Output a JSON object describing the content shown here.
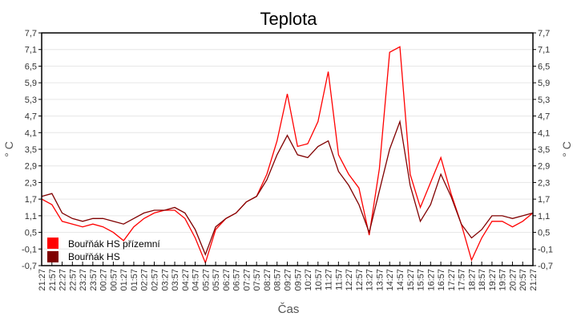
{
  "chart_data": {
    "type": "line",
    "title": "Teplota",
    "xlabel": "Čas",
    "ylabel": "° C",
    "ylim": [
      -0.7,
      7.7
    ],
    "yticks": [
      "-0,7",
      "-0,1",
      "0,5",
      "1,1",
      "1,7",
      "2,3",
      "2,9",
      "3,5",
      "4,1",
      "4,7",
      "5,3",
      "5,9",
      "6,5",
      "7,1",
      "7,7"
    ],
    "grid": true,
    "legend_placement": "bottom-left",
    "x": [
      "21:27",
      "21:57",
      "22:27",
      "22:57",
      "23:27",
      "23:57",
      "00:27",
      "00:57",
      "01:27",
      "01:57",
      "02:27",
      "02:57",
      "03:27",
      "03:57",
      "04:27",
      "04:57",
      "05:27",
      "05:57",
      "06:27",
      "06:57",
      "07:27",
      "07:57",
      "08:27",
      "08:57",
      "09:27",
      "09:57",
      "10:27",
      "10:57",
      "11:27",
      "11:57",
      "12:27",
      "12:57",
      "13:27",
      "13:57",
      "14:27",
      "14:57",
      "15:27",
      "15:57",
      "16:27",
      "16:57",
      "17:27",
      "17:57",
      "18:27",
      "18:57",
      "19:27",
      "19:57",
      "20:27",
      "20:57",
      "21:27"
    ],
    "series": [
      {
        "name": "Bouřňák HS přízemní",
        "color": "#ff0000",
        "values": [
          1.7,
          1.5,
          0.9,
          0.8,
          0.7,
          0.8,
          0.7,
          0.5,
          0.2,
          0.7,
          1.0,
          1.2,
          1.3,
          1.3,
          1.0,
          0.3,
          -0.6,
          0.6,
          1.0,
          1.2,
          1.6,
          1.8,
          2.6,
          3.8,
          5.5,
          3.6,
          3.7,
          4.5,
          6.3,
          3.3,
          2.6,
          2.1,
          0.4,
          2.8,
          7.0,
          7.2,
          2.6,
          1.4,
          2.3,
          3.2,
          1.9,
          0.8,
          -0.5,
          0.3,
          0.9,
          0.9,
          0.7,
          0.9,
          1.2
        ]
      },
      {
        "name": "Bouřňák HS",
        "color": "#800000",
        "values": [
          1.8,
          1.9,
          1.2,
          1.0,
          0.9,
          1.0,
          1.0,
          0.9,
          0.8,
          1.0,
          1.2,
          1.3,
          1.3,
          1.4,
          1.2,
          0.6,
          -0.3,
          0.7,
          1.0,
          1.2,
          1.6,
          1.8,
          2.4,
          3.3,
          4.0,
          3.3,
          3.2,
          3.6,
          3.8,
          2.7,
          2.2,
          1.5,
          0.5,
          2.0,
          3.5,
          4.5,
          2.2,
          0.9,
          1.5,
          2.6,
          1.8,
          0.8,
          0.3,
          0.6,
          1.1,
          1.1,
          1.0,
          1.1,
          1.2
        ]
      }
    ]
  }
}
